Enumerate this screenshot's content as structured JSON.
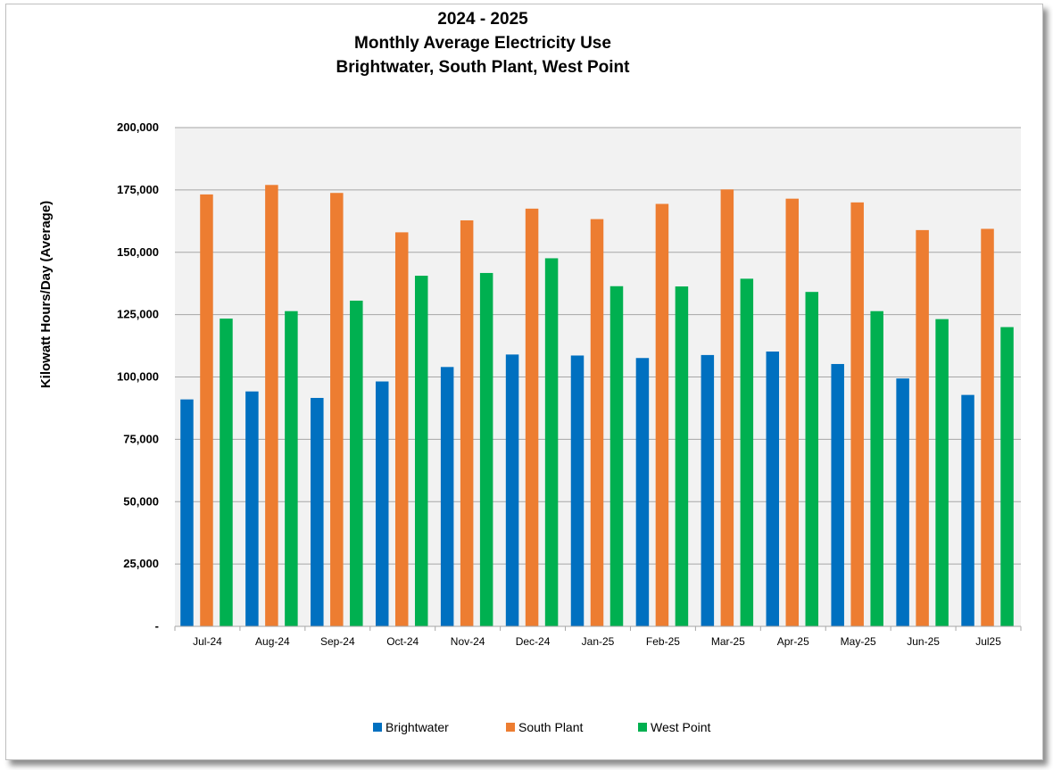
{
  "chart_data": {
    "type": "bar",
    "title_lines": [
      "2024 - 2025",
      "Monthly Average Electricity Use",
      "Brightwater, South Plant, West Point"
    ],
    "ylabel": "Kilowatt Hours/Day (Average)",
    "xlabel": "",
    "ylim": [
      0,
      200000
    ],
    "yticks": [
      0,
      25000,
      50000,
      75000,
      100000,
      125000,
      150000,
      175000,
      200000
    ],
    "ytick_labels": [
      "-",
      "25,000",
      "50,000",
      "75,000",
      "100,000",
      "125,000",
      "150,000",
      "175,000",
      "200,000"
    ],
    "grid": true,
    "legend_position": "bottom",
    "categories": [
      "Jul-24",
      "Aug-24",
      "Sep-24",
      "Oct-24",
      "Nov-24",
      "Dec-24",
      "Jan-25",
      "Feb-25",
      "Mar-25",
      "Apr-25",
      "May-25",
      "Jun-25",
      "Jul25"
    ],
    "series": [
      {
        "name": "Brightwater",
        "color": "#0070C0",
        "values": [
          91000,
          94200,
          91600,
          98200,
          104000,
          109000,
          108600,
          107600,
          108800,
          110200,
          105200,
          99400,
          92800
        ]
      },
      {
        "name": "South Plant",
        "color": "#ED7D31",
        "values": [
          173200,
          177000,
          173800,
          158000,
          162800,
          167500,
          163300,
          169400,
          175200,
          171500,
          170000,
          158900,
          159400
        ]
      },
      {
        "name": "West Point",
        "color": "#00B050",
        "values": [
          123400,
          126400,
          130600,
          140600,
          141700,
          147600,
          136400,
          136300,
          139400,
          134100,
          126400,
          123200,
          120000
        ]
      }
    ]
  }
}
